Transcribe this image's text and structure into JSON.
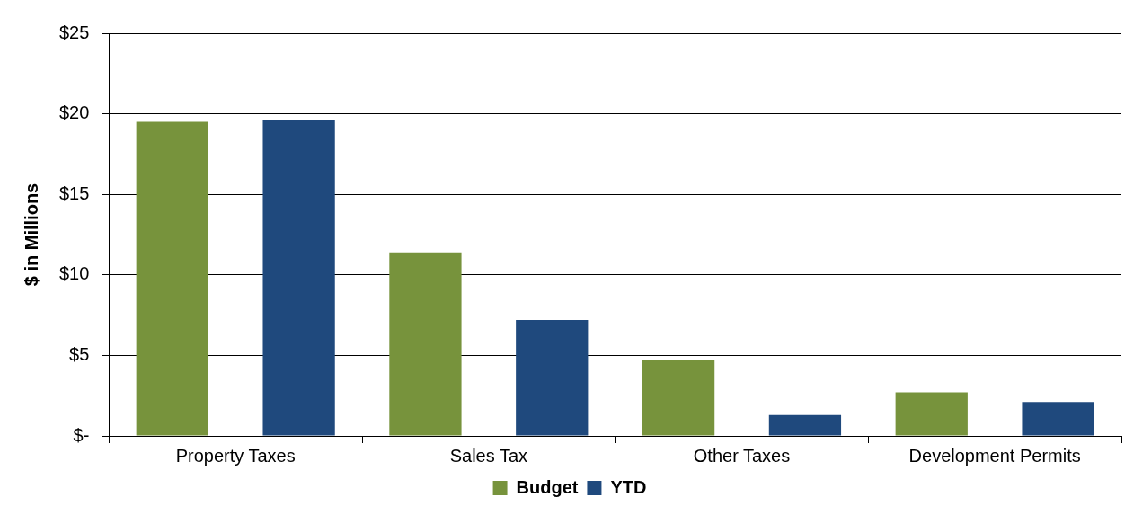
{
  "chart_data": {
    "type": "bar",
    "ylabel": "$ in Millions",
    "categories": [
      "Property Taxes",
      "Sales Tax",
      "Other Taxes",
      "Development Permits"
    ],
    "series": [
      {
        "name": "Budget",
        "color": "#77933c",
        "values": [
          19.5,
          11.4,
          4.7,
          2.7
        ]
      },
      {
        "name": "YTD",
        "color": "#1f497d",
        "values": [
          19.6,
          7.2,
          1.3,
          2.1
        ]
      }
    ],
    "ylim": [
      0,
      25
    ],
    "yticks": [
      {
        "value": 0,
        "label": "$-"
      },
      {
        "value": 5,
        "label": "$5"
      },
      {
        "value": 10,
        "label": "$10"
      },
      {
        "value": 15,
        "label": "$15"
      },
      {
        "value": 20,
        "label": "$20"
      },
      {
        "value": 25,
        "label": "$25"
      }
    ],
    "grid": "y",
    "legend": "bottom"
  }
}
